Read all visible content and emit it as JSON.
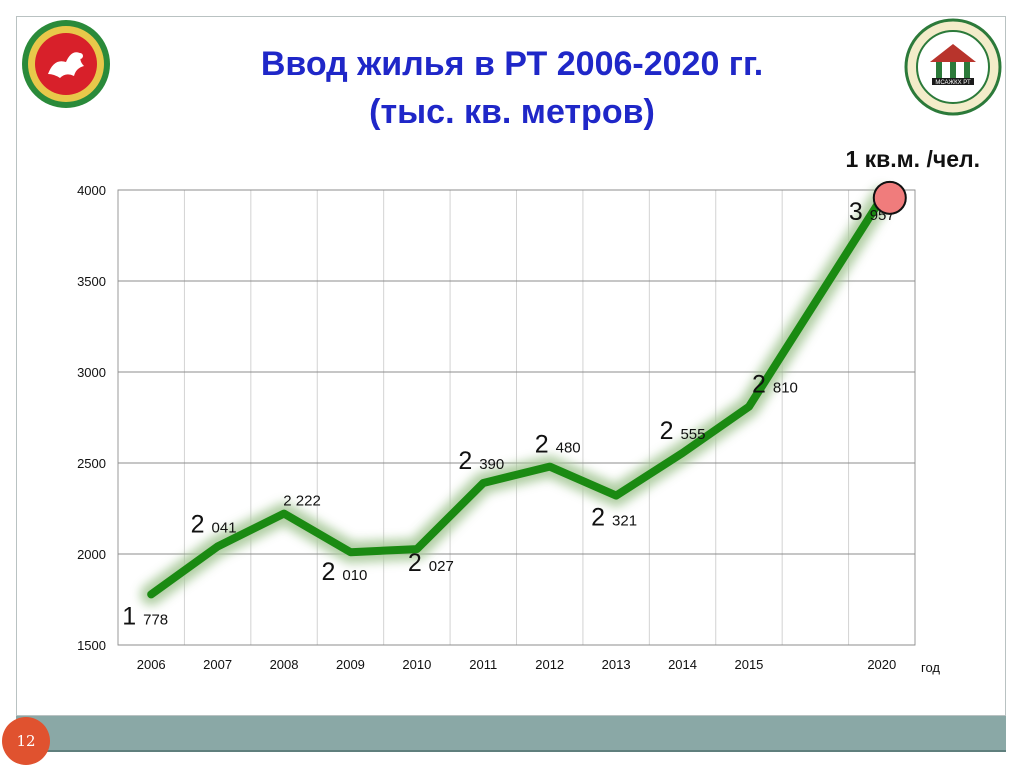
{
  "slide": {
    "title_line1": "Ввод жилья в РТ 2006-2020 гг.",
    "title_line2": "(тыс. кв. метров)",
    "annotation": "1 кв.м. /чел.",
    "page_number": "12",
    "right_logo_text": "МСАЖКХ РТ"
  },
  "colors": {
    "title": "#1f27c8",
    "series_line": "#1a8a12",
    "series_glow": "#a8c99a",
    "highlight_marker": "#f07c7c",
    "bottom_bar": "#8aa8a6",
    "page_badge": "#e0522f"
  },
  "chart_data": {
    "type": "line",
    "title": "Ввод жилья в РТ 2006-2020 гг. (тыс. кв. метров)",
    "xlabel": "год",
    "ylabel": "",
    "categories": [
      "2006",
      "2007",
      "2008",
      "2009",
      "2010",
      "2011",
      "2012",
      "2013",
      "2014",
      "2015",
      "",
      "2020"
    ],
    "ylim": [
      1500,
      4000
    ],
    "yticks": [
      "1500",
      "2000",
      "2500",
      "3000",
      "3500",
      "4000"
    ],
    "grid": true,
    "series": [
      {
        "values": [
          1778,
          2041,
          2222,
          2010,
          2027,
          2390,
          2480,
          2321,
          2555,
          2810,
          null,
          3957
        ],
        "data_labels": [
          {
            "big": "1",
            "small": "778"
          },
          {
            "big": "2",
            "small": "041"
          },
          {
            "big": "",
            "small": "2 222"
          },
          {
            "big": "2",
            "small": "010"
          },
          {
            "big": "2",
            "small": "027"
          },
          {
            "big": "2",
            "small": "390"
          },
          {
            "big": "2",
            "small": "480"
          },
          {
            "big": "2",
            "small": "321"
          },
          {
            "big": "2",
            "small": "555"
          },
          {
            "big": "2",
            "small": "810"
          },
          null,
          {
            "big": "3",
            "small": "957"
          }
        ]
      }
    ],
    "highlight_point": "2020"
  }
}
